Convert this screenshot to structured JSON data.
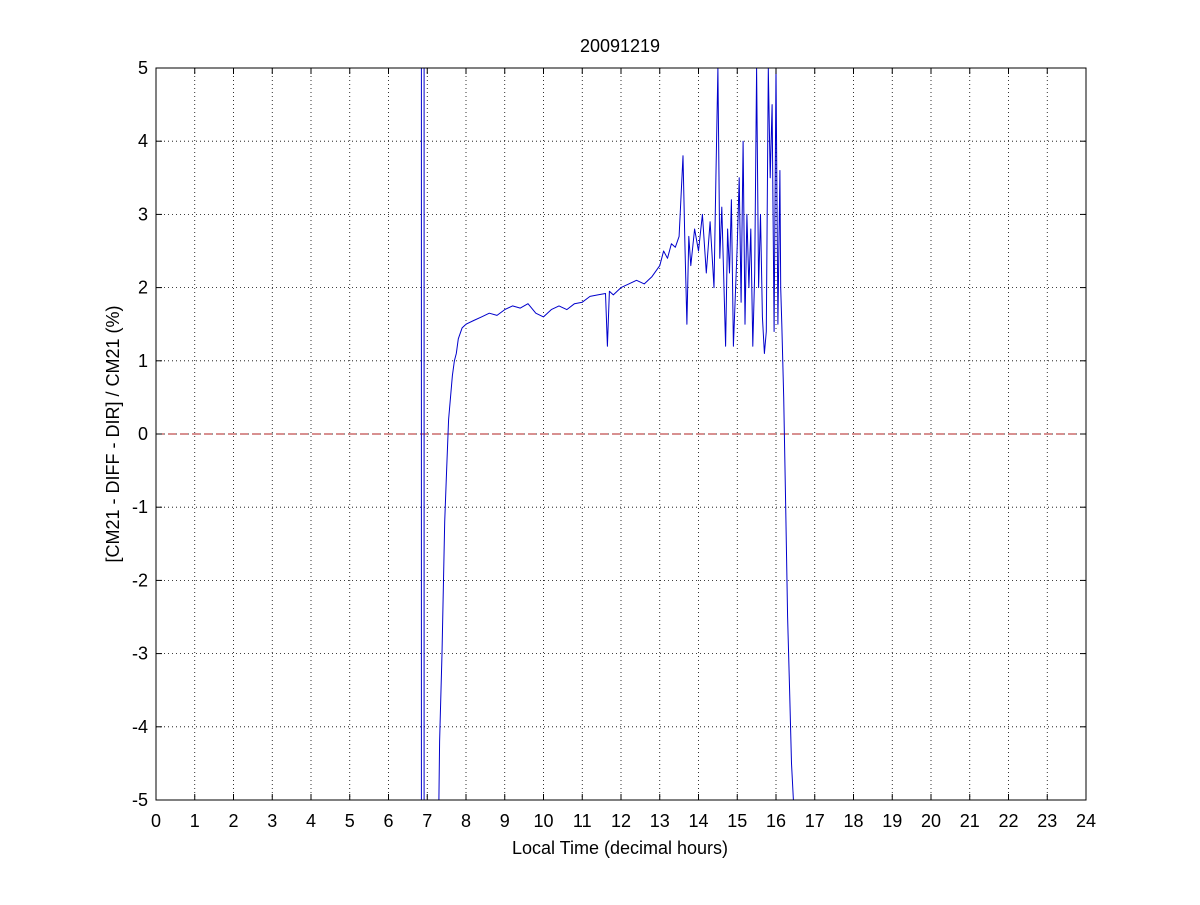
{
  "chart_data": {
    "type": "line",
    "title": "20091219",
    "xlabel": "Local Time (decimal hours)",
    "ylabel": "[CM21 - DIFF - DIR] / CM21 (%)",
    "xlim": [
      0,
      24
    ],
    "ylim": [
      -5,
      5
    ],
    "xticks": [
      "0",
      "1",
      "2",
      "3",
      "4",
      "5",
      "6",
      "7",
      "8",
      "9",
      "10",
      "11",
      "12",
      "13",
      "14",
      "15",
      "16",
      "17",
      "18",
      "19",
      "20",
      "21",
      "22",
      "23",
      "24"
    ],
    "yticks": [
      "-5",
      "-4",
      "-3",
      "-2",
      "-1",
      "0",
      "1",
      "2",
      "3",
      "4",
      "5"
    ],
    "grid": true,
    "reference_line": {
      "y": 0,
      "color": "#b22222",
      "style": "dashed"
    },
    "series": [
      {
        "color": "#0000cc",
        "segments": [
          [
            [
              6.85,
              -5.0
            ],
            [
              6.85,
              5.0
            ]
          ],
          [
            [
              6.92,
              5.0
            ],
            [
              6.92,
              -5.0
            ]
          ],
          [
            [
              7.3,
              -5.0
            ],
            [
              7.32,
              -4.2
            ],
            [
              7.38,
              -3.0
            ],
            [
              7.45,
              -1.2
            ],
            [
              7.5,
              -0.5
            ],
            [
              7.55,
              0.2
            ],
            [
              7.6,
              0.5
            ],
            [
              7.65,
              0.8
            ],
            [
              7.7,
              1.0
            ],
            [
              7.75,
              1.1
            ],
            [
              7.8,
              1.3
            ],
            [
              7.9,
              1.45
            ],
            [
              8.0,
              1.5
            ],
            [
              8.2,
              1.55
            ],
            [
              8.4,
              1.6
            ],
            [
              8.6,
              1.65
            ],
            [
              8.8,
              1.62
            ],
            [
              9.0,
              1.7
            ],
            [
              9.2,
              1.75
            ],
            [
              9.4,
              1.72
            ],
            [
              9.6,
              1.78
            ],
            [
              9.8,
              1.65
            ],
            [
              10.0,
              1.6
            ],
            [
              10.2,
              1.7
            ],
            [
              10.4,
              1.75
            ],
            [
              10.6,
              1.7
            ],
            [
              10.8,
              1.78
            ],
            [
              11.0,
              1.8
            ],
            [
              11.2,
              1.88
            ],
            [
              11.4,
              1.9
            ],
            [
              11.6,
              1.92
            ],
            [
              11.65,
              1.2
            ],
            [
              11.7,
              1.95
            ],
            [
              11.8,
              1.9
            ],
            [
              12.0,
              2.0
            ],
            [
              12.2,
              2.05
            ],
            [
              12.4,
              2.1
            ],
            [
              12.6,
              2.05
            ],
            [
              12.8,
              2.15
            ],
            [
              13.0,
              2.3
            ],
            [
              13.1,
              2.5
            ],
            [
              13.2,
              2.4
            ],
            [
              13.3,
              2.6
            ],
            [
              13.4,
              2.55
            ],
            [
              13.5,
              2.7
            ],
            [
              13.6,
              3.8
            ],
            [
              13.65,
              2.6
            ],
            [
              13.7,
              1.5
            ],
            [
              13.75,
              2.7
            ],
            [
              13.8,
              2.3
            ],
            [
              13.9,
              2.8
            ],
            [
              14.0,
              2.5
            ],
            [
              14.1,
              3.0
            ],
            [
              14.2,
              2.2
            ],
            [
              14.3,
              2.9
            ],
            [
              14.4,
              2.0
            ],
            [
              14.45,
              3.5
            ],
            [
              14.5,
              5.0
            ],
            [
              14.55,
              2.4
            ],
            [
              14.6,
              3.1
            ],
            [
              14.7,
              1.2
            ],
            [
              14.75,
              2.8
            ],
            [
              14.8,
              2.2
            ],
            [
              14.85,
              3.2
            ],
            [
              14.9,
              1.2
            ],
            [
              15.0,
              2.6
            ],
            [
              15.05,
              3.5
            ],
            [
              15.1,
              1.8
            ],
            [
              15.15,
              4.0
            ],
            [
              15.2,
              1.5
            ],
            [
              15.25,
              3.0
            ],
            [
              15.3,
              2.0
            ],
            [
              15.35,
              2.8
            ],
            [
              15.4,
              1.2
            ],
            [
              15.45,
              2.2
            ],
            [
              15.5,
              5.0
            ],
            [
              15.55,
              2.0
            ],
            [
              15.6,
              3.0
            ],
            [
              15.65,
              1.6
            ],
            [
              15.7,
              1.1
            ],
            [
              15.75,
              1.4
            ],
            [
              15.8,
              5.0
            ],
            [
              15.85,
              3.5
            ],
            [
              15.9,
              4.5
            ],
            [
              15.95,
              1.4
            ],
            [
              16.0,
              5.0
            ],
            [
              16.05,
              1.5
            ],
            [
              16.1,
              3.6
            ],
            [
              16.12,
              2.0
            ],
            [
              16.15,
              1.5
            ],
            [
              16.2,
              0.5
            ],
            [
              16.25,
              -1.0
            ],
            [
              16.3,
              -2.5
            ],
            [
              16.35,
              -3.5
            ],
            [
              16.4,
              -4.5
            ],
            [
              16.45,
              -5.0
            ]
          ]
        ]
      }
    ]
  }
}
